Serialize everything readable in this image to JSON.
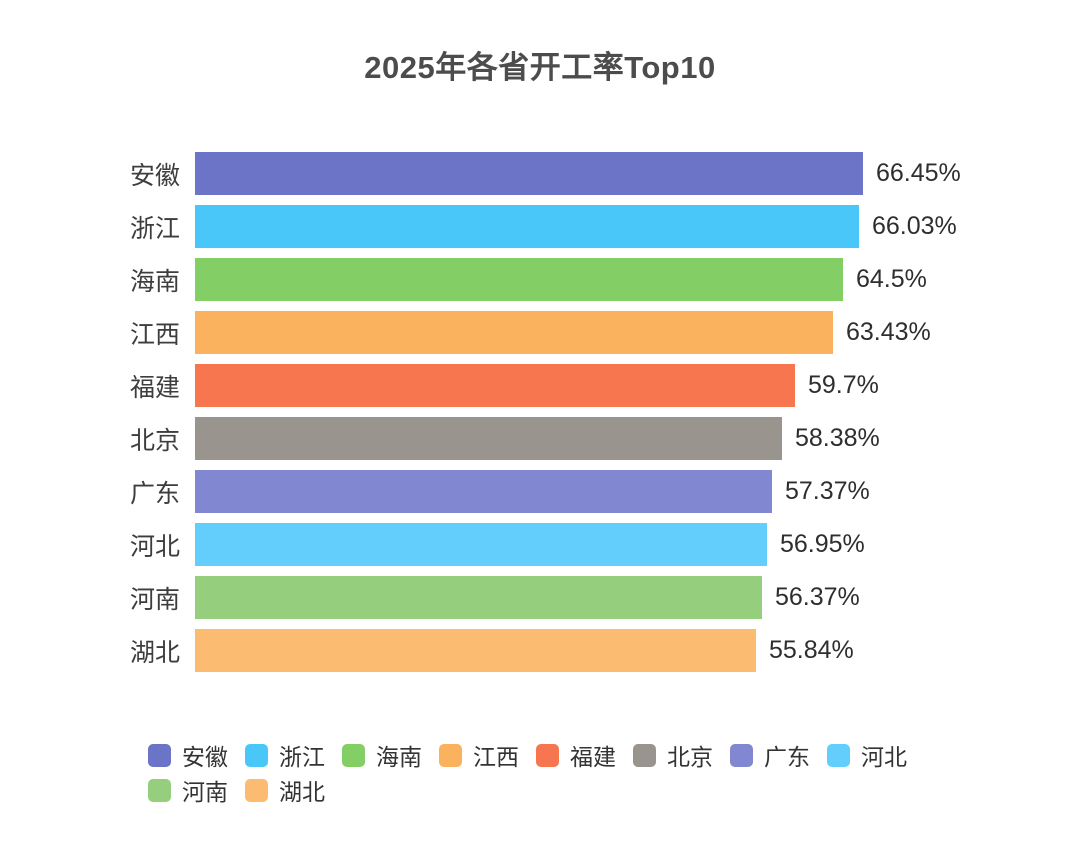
{
  "chart_data": {
    "type": "bar",
    "orientation": "horizontal",
    "title": "2025年各省开工率Top10",
    "categories": [
      "安徽",
      "浙江",
      "海南",
      "江西",
      "福建",
      "北京",
      "广东",
      "河北",
      "河南",
      "湖北"
    ],
    "values": [
      66.45,
      66.03,
      64.5,
      63.43,
      59.7,
      58.38,
      57.37,
      56.95,
      56.37,
      55.84
    ],
    "value_labels": [
      "66.45%",
      "66.03%",
      "64.5%",
      "63.43%",
      "59.7%",
      "58.38%",
      "57.37%",
      "56.95%",
      "56.37%",
      "55.84%"
    ],
    "bar_colors": [
      "#6B74C6",
      "#4AC7F9",
      "#84CE66",
      "#FBB25E",
      "#F77650",
      "#9A948E",
      "#8187D0",
      "#63CDFB",
      "#95CF7D",
      "#FBBC72"
    ],
    "xlim": [
      0,
      70
    ],
    "grid": false,
    "background_color": "#FFFFFF",
    "title_color": "#4C4C4C",
    "label_color": "#3D3D3D",
    "value_label_color": "#2E2E2E",
    "legend": {
      "position": "bottom",
      "entries": [
        {
          "label": "安徽",
          "color": "#6B74C6"
        },
        {
          "label": "浙江",
          "color": "#4AC7F9"
        },
        {
          "label": "海南",
          "color": "#84CE66"
        },
        {
          "label": "江西",
          "color": "#FBB25E"
        },
        {
          "label": "福建",
          "color": "#F77650"
        },
        {
          "label": "北京",
          "color": "#9A948E"
        },
        {
          "label": "广东",
          "color": "#8187D0"
        },
        {
          "label": "河北",
          "color": "#63CDFB"
        },
        {
          "label": "河南",
          "color": "#95CF7D"
        },
        {
          "label": "湖北",
          "color": "#FBBC72"
        }
      ]
    }
  }
}
